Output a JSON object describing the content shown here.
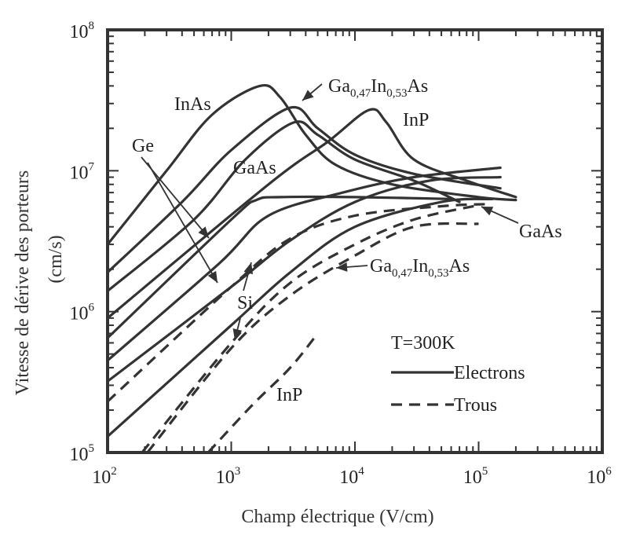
{
  "chart_data": {
    "type": "line",
    "xlabel": "Champ électrique (V/cm)",
    "ylabel_line1": "Vitesse de dérive des porteurs",
    "ylabel_line2": "(cm/s)",
    "x_scale": "log",
    "y_scale": "log",
    "xlim": [
      100,
      1000000
    ],
    "ylim": [
      100000,
      100000000
    ],
    "x_ticks": [
      {
        "base": "10",
        "exp": "2"
      },
      {
        "base": "10",
        "exp": "3"
      },
      {
        "base": "10",
        "exp": "4"
      },
      {
        "base": "10",
        "exp": "5"
      },
      {
        "base": "10",
        "exp": "6"
      }
    ],
    "y_ticks": [
      {
        "base": "10",
        "exp": "5"
      },
      {
        "base": "10",
        "exp": "6"
      },
      {
        "base": "10",
        "exp": "7"
      },
      {
        "base": "10",
        "exp": "8"
      }
    ],
    "grid": false,
    "legend": {
      "title": "T=300K",
      "entries": [
        {
          "label": "Electrons",
          "style": "solid"
        },
        {
          "label": "Trous",
          "style": "dashed"
        }
      ],
      "placement": "bottom-right"
    },
    "series": [
      {
        "style": "solid",
        "carrier": "electron",
        "points": [
          [
            100,
            3000000
          ],
          [
            300,
            10000000
          ],
          [
            700,
            25000000
          ],
          [
            1700,
            40000000
          ],
          [
            2500,
            33000000
          ],
          [
            4000,
            18000000
          ],
          [
            7000,
            11000000
          ],
          [
            20000,
            8000000
          ],
          [
            100000,
            6500000
          ],
          [
            200000,
            6200000
          ]
        ]
      },
      {
        "style": "solid",
        "carrier": "electron",
        "points": [
          [
            100,
            1900000
          ],
          [
            400,
            6000000
          ],
          [
            1000,
            14000000
          ],
          [
            3000,
            28000000
          ],
          [
            5000,
            20000000
          ],
          [
            10000,
            13000000
          ],
          [
            30000,
            9500000
          ],
          [
            150000,
            7500000
          ]
        ]
      },
      {
        "style": "solid",
        "carrier": "electron",
        "points": [
          [
            100,
            1400000
          ],
          [
            500,
            4500000
          ],
          [
            1300,
            12000000
          ],
          [
            3200,
            22000000
          ],
          [
            5000,
            18000000
          ],
          [
            10000,
            12000000
          ],
          [
            30000,
            8500000
          ],
          [
            70000,
            6000000
          ]
        ]
      },
      {
        "style": "solid",
        "carrier": "electron",
        "points": [
          [
            100,
            900000
          ],
          [
            2000,
            8000000
          ],
          [
            6000,
            16000000
          ],
          [
            13000,
            27000000
          ],
          [
            18000,
            22000000
          ],
          [
            30000,
            12000000
          ],
          [
            80000,
            8500000
          ],
          [
            200000,
            6500000
          ]
        ]
      },
      {
        "style": "solid",
        "carrier": "electron",
        "points": [
          [
            100,
            650000
          ],
          [
            1000,
            4500000
          ],
          [
            1600,
            6200000
          ],
          [
            2500,
            6500000
          ],
          [
            10000,
            6500000
          ],
          [
            60000,
            6300000
          ]
        ]
      },
      {
        "style": "solid",
        "carrier": "electron",
        "points": [
          [
            100,
            450000
          ],
          [
            800,
            2200000
          ],
          [
            2000,
            4800000
          ],
          [
            8000,
            7000000
          ],
          [
            30000,
            9000000
          ],
          [
            150000,
            10500000
          ]
        ]
      },
      {
        "style": "solid",
        "carrier": "electron",
        "points": [
          [
            100,
            320000
          ],
          [
            1000,
            1500000
          ],
          [
            3000,
            3200000
          ],
          [
            10000,
            6000000
          ],
          [
            40000,
            8500000
          ],
          [
            150000,
            9000000
          ]
        ]
      },
      {
        "style": "solid",
        "carrier": "electron",
        "points": [
          [
            100,
            130000
          ],
          [
            1000,
            800000
          ],
          [
            3000,
            1900000
          ],
          [
            10000,
            4000000
          ],
          [
            50000,
            6000000
          ],
          [
            130000,
            6300000
          ]
        ]
      },
      {
        "style": "dashed",
        "carrier": "hole",
        "points": [
          [
            100,
            230000
          ],
          [
            1000,
            1500000
          ],
          [
            3000,
            3300000
          ],
          [
            10000,
            4800000
          ],
          [
            50000,
            5600000
          ],
          [
            120000,
            5800000
          ]
        ]
      },
      {
        "style": "dashed",
        "carrier": "hole",
        "points": [
          [
            190,
            100000
          ],
          [
            1000,
            600000
          ],
          [
            3000,
            1600000
          ],
          [
            10000,
            3000000
          ],
          [
            30000,
            4500000
          ],
          [
            100000,
            5700000
          ]
        ]
      },
      {
        "style": "dashed",
        "carrier": "hole",
        "points": [
          [
            210,
            100000
          ],
          [
            1000,
            550000
          ],
          [
            3000,
            1300000
          ],
          [
            10000,
            2500000
          ],
          [
            30000,
            4000000
          ],
          [
            100000,
            4200000
          ]
        ]
      },
      {
        "style": "dashed",
        "carrier": "hole",
        "points": [
          [
            650,
            100000
          ],
          [
            1500,
            220000
          ],
          [
            3000,
            400000
          ],
          [
            5000,
            700000
          ]
        ]
      }
    ],
    "annotations": [
      {
        "id": "inas",
        "parts": [
          {
            "t": "InAs"
          }
        ]
      },
      {
        "id": "gainas-top",
        "parts": [
          {
            "t": "Ga"
          },
          {
            "t": "0,47",
            "sub": true
          },
          {
            "t": "In"
          },
          {
            "t": "0,53",
            "sub": true
          },
          {
            "t": "As"
          }
        ]
      },
      {
        "id": "inp-top",
        "parts": [
          {
            "t": "InP"
          }
        ]
      },
      {
        "id": "ge",
        "parts": [
          {
            "t": "Ge"
          }
        ]
      },
      {
        "id": "gaas-left",
        "parts": [
          {
            "t": "GaAs"
          }
        ]
      },
      {
        "id": "gaas-right",
        "parts": [
          {
            "t": "GaAs"
          }
        ]
      },
      {
        "id": "gainas-mid",
        "parts": [
          {
            "t": "Ga"
          },
          {
            "t": "0,47",
            "sub": true
          },
          {
            "t": "In"
          },
          {
            "t": "0,53",
            "sub": true
          },
          {
            "t": "As"
          }
        ]
      },
      {
        "id": "si",
        "parts": [
          {
            "t": "Si"
          }
        ]
      },
      {
        "id": "inp-bottom",
        "parts": [
          {
            "t": "InP"
          }
        ]
      }
    ]
  }
}
